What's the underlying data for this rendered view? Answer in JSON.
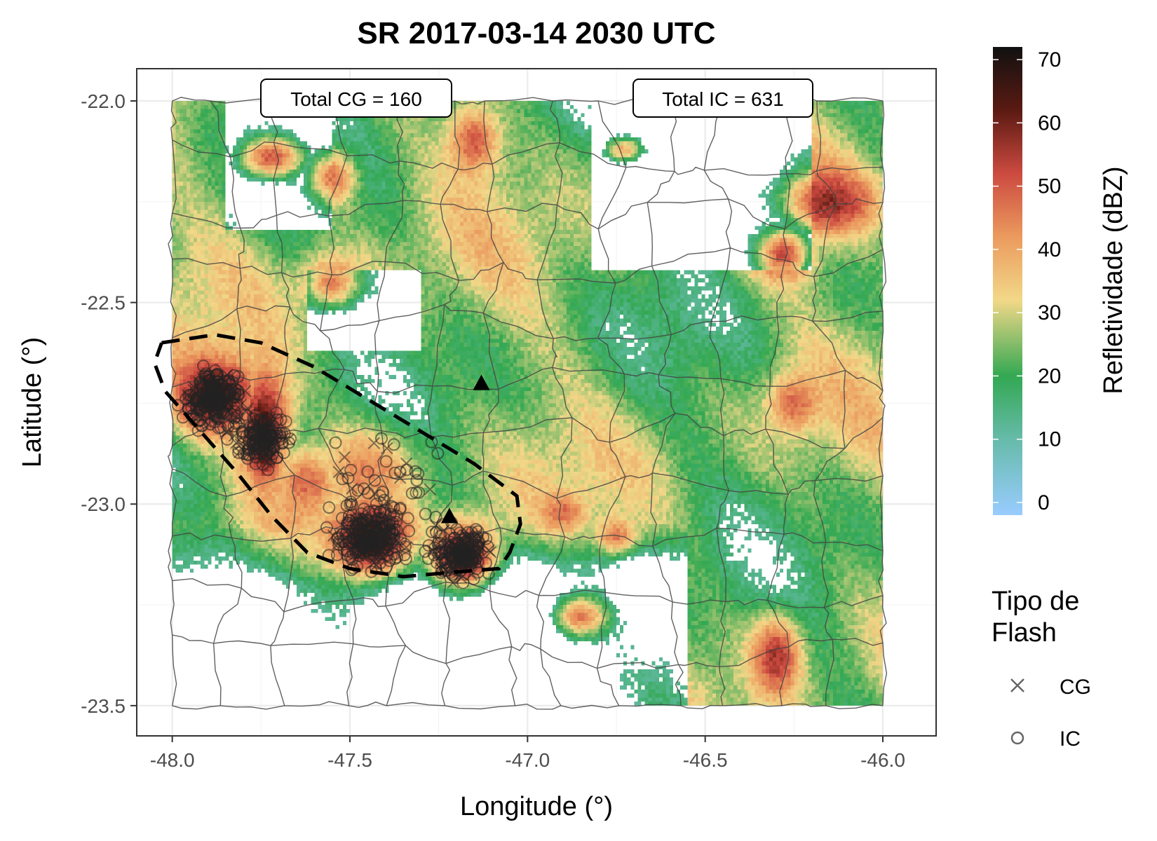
{
  "title": "SR 2017-03-14 2030 UTC",
  "annotations": {
    "total_cg": "Total CG = 160",
    "total_ic": "Total IC = 631"
  },
  "x_axis": {
    "label": "Longitude (°)",
    "range": [
      -48.1,
      -45.85
    ],
    "ticks": [
      {
        "value": -48.0,
        "label": "-48.0"
      },
      {
        "value": -47.5,
        "label": "-47.5"
      },
      {
        "value": -47.0,
        "label": "-47.0"
      },
      {
        "value": -46.5,
        "label": "-46.5"
      },
      {
        "value": -46.0,
        "label": "-46.0"
      }
    ]
  },
  "y_axis": {
    "label": "Latitude (°)",
    "range": [
      -23.575,
      -21.92
    ],
    "ticks": [
      {
        "value": -22.0,
        "label": "-22.0"
      },
      {
        "value": -22.5,
        "label": "-22.5"
      },
      {
        "value": -23.0,
        "label": "-23.0"
      },
      {
        "value": -23.5,
        "label": "-23.5"
      }
    ]
  },
  "colorbar": {
    "title": "Refletividade (dBZ)",
    "range": [
      -2,
      72
    ],
    "ticks": [
      {
        "value": 0,
        "label": "0"
      },
      {
        "value": 10,
        "label": "10"
      },
      {
        "value": 20,
        "label": "20"
      },
      {
        "value": 30,
        "label": "30"
      },
      {
        "value": 40,
        "label": "40"
      },
      {
        "value": 50,
        "label": "50"
      },
      {
        "value": 60,
        "label": "60"
      },
      {
        "value": 70,
        "label": "70"
      }
    ],
    "stops": [
      {
        "v": -2,
        "c": "#99ccff"
      },
      {
        "v": 10,
        "c": "#66bbaa"
      },
      {
        "v": 20,
        "c": "#33a852"
      },
      {
        "v": 32,
        "c": "#f2d888"
      },
      {
        "v": 42,
        "c": "#eb9a5e"
      },
      {
        "v": 52,
        "c": "#cc4a40"
      },
      {
        "v": 62,
        "c": "#5a1a12"
      },
      {
        "v": 72,
        "c": "#111111"
      }
    ]
  },
  "legend": {
    "title_line1": "Tipo de",
    "title_line2": "Flash",
    "items": [
      {
        "symbol": "x",
        "label": "CG"
      },
      {
        "symbol": "o",
        "label": "IC"
      }
    ]
  },
  "chart_data": {
    "type": "heatmap",
    "title": "SR 2017-03-14 2030 UTC",
    "xlabel": "Longitude (°)",
    "ylabel": "Latitude (°)",
    "xlim": [
      -48.1,
      -45.85
    ],
    "ylim": [
      -23.575,
      -21.92
    ],
    "grid": true,
    "legend_position": "right",
    "totals": {
      "CG": 160,
      "IC": 631
    },
    "radar_extent": {
      "lon": [
        -48.0,
        -46.0
      ],
      "lat": [
        -23.5,
        -22.0
      ]
    },
    "reflectivity_cores": [
      {
        "lon": -47.88,
        "lat": -22.73,
        "dbz": 66,
        "sx": 0.09,
        "sy": 0.07
      },
      {
        "lon": -47.74,
        "lat": -22.8,
        "dbz": 64,
        "sx": 0.05,
        "sy": 0.1
      },
      {
        "lon": -47.74,
        "lat": -22.88,
        "dbz": 62,
        "sx": 0.04,
        "sy": 0.05
      },
      {
        "lon": -47.44,
        "lat": -23.09,
        "dbz": 68,
        "sx": 0.08,
        "sy": 0.07
      },
      {
        "lon": -47.18,
        "lat": -23.13,
        "dbz": 67,
        "sx": 0.07,
        "sy": 0.06
      },
      {
        "lon": -47.62,
        "lat": -22.95,
        "dbz": 48,
        "sx": 0.06,
        "sy": 0.06
      },
      {
        "lon": -47.45,
        "lat": -22.92,
        "dbz": 44,
        "sx": 0.1,
        "sy": 0.08
      },
      {
        "lon": -47.72,
        "lat": -22.14,
        "dbz": 50,
        "sx": 0.07,
        "sy": 0.04
      },
      {
        "lon": -47.55,
        "lat": -22.19,
        "dbz": 46,
        "sx": 0.05,
        "sy": 0.05
      },
      {
        "lon": -47.15,
        "lat": -22.1,
        "dbz": 50,
        "sx": 0.05,
        "sy": 0.06
      },
      {
        "lon": -46.73,
        "lat": -22.12,
        "dbz": 38,
        "sx": 0.05,
        "sy": 0.03
      },
      {
        "lon": -46.15,
        "lat": -22.25,
        "dbz": 58,
        "sx": 0.1,
        "sy": 0.06
      },
      {
        "lon": -46.28,
        "lat": -22.38,
        "dbz": 52,
        "sx": 0.06,
        "sy": 0.05
      },
      {
        "lon": -46.25,
        "lat": -22.75,
        "dbz": 48,
        "sx": 0.05,
        "sy": 0.05
      },
      {
        "lon": -46.3,
        "lat": -23.38,
        "dbz": 56,
        "sx": 0.05,
        "sy": 0.07
      },
      {
        "lon": -47.55,
        "lat": -22.45,
        "dbz": 45,
        "sx": 0.06,
        "sy": 0.05
      },
      {
        "lon": -46.75,
        "lat": -23.08,
        "dbz": 46,
        "sx": 0.04,
        "sy": 0.03
      },
      {
        "lon": -46.9,
        "lat": -23.02,
        "dbz": 48,
        "sx": 0.04,
        "sy": 0.03
      },
      {
        "lon": -46.85,
        "lat": -23.28,
        "dbz": 45,
        "sx": 0.06,
        "sy": 0.04
      }
    ],
    "flash_clusters": [
      {
        "type": "IC",
        "lon": -47.88,
        "lat": -22.74,
        "count": 160,
        "spread": 0.06
      },
      {
        "type": "CG",
        "lon": -47.88,
        "lat": -22.74,
        "count": 40,
        "spread": 0.06
      },
      {
        "type": "IC",
        "lon": -47.75,
        "lat": -22.84,
        "count": 120,
        "spread": 0.05
      },
      {
        "type": "CG",
        "lon": -47.75,
        "lat": -22.84,
        "count": 30,
        "spread": 0.05
      },
      {
        "type": "IC",
        "lon": -47.44,
        "lat": -23.08,
        "count": 180,
        "spread": 0.07
      },
      {
        "type": "CG",
        "lon": -47.44,
        "lat": -23.08,
        "count": 45,
        "spread": 0.07
      },
      {
        "type": "IC",
        "lon": -47.19,
        "lat": -23.12,
        "count": 140,
        "spread": 0.06
      },
      {
        "type": "CG",
        "lon": -47.19,
        "lat": -23.12,
        "count": 35,
        "spread": 0.06
      },
      {
        "type": "IC",
        "lon": -47.4,
        "lat": -22.92,
        "count": 31,
        "spread": 0.12
      },
      {
        "type": "CG",
        "lon": -47.4,
        "lat": -22.92,
        "count": 10,
        "spread": 0.12
      }
    ],
    "radar_sites": [
      {
        "lon": -47.13,
        "lat": -22.7
      },
      {
        "lon": -47.22,
        "lat": -23.03
      }
    ],
    "tracked_region_outline": [
      [
        -48.03,
        -22.6
      ],
      [
        -47.88,
        -22.58
      ],
      [
        -47.75,
        -22.6
      ],
      [
        -47.6,
        -22.66
      ],
      [
        -47.45,
        -22.74
      ],
      [
        -47.3,
        -22.82
      ],
      [
        -47.15,
        -22.9
      ],
      [
        -47.03,
        -22.98
      ],
      [
        -47.02,
        -23.05
      ],
      [
        -47.05,
        -23.12
      ],
      [
        -47.08,
        -23.16
      ],
      [
        -47.22,
        -23.17
      ],
      [
        -47.35,
        -23.18
      ],
      [
        -47.5,
        -23.16
      ],
      [
        -47.62,
        -23.12
      ],
      [
        -47.72,
        -23.03
      ],
      [
        -47.82,
        -22.92
      ],
      [
        -47.92,
        -22.82
      ],
      [
        -48.02,
        -22.72
      ],
      [
        -48.05,
        -22.65
      ],
      [
        -48.03,
        -22.6
      ]
    ]
  }
}
